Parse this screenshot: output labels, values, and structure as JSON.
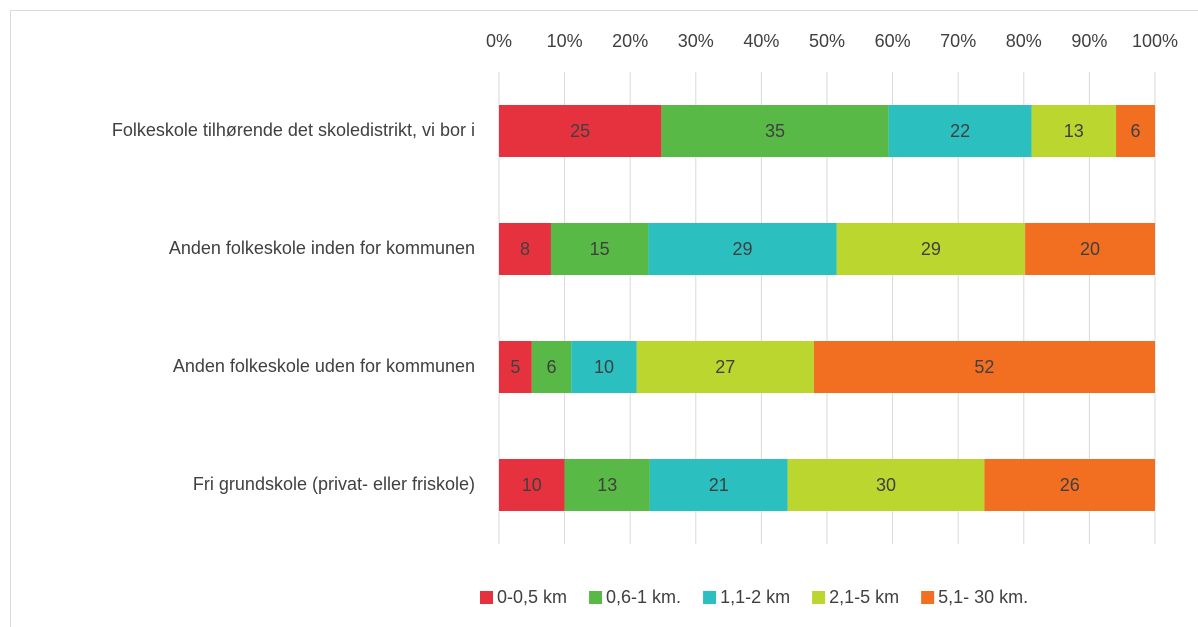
{
  "chart_data": {
    "type": "bar",
    "orientation": "horizontal",
    "stacking": "percent",
    "categories": [
      "Folkeskole tilhørende det skoledistrikt, vi bor i",
      "Anden folkeskole inden for kommunen",
      "Anden folkeskole uden for kommunen",
      "Fri grundskole (privat- eller friskole)"
    ],
    "series": [
      {
        "name": "0-0,5 km",
        "color": "#e5323e",
        "values": [
          25,
          8,
          5,
          10
        ]
      },
      {
        "name": "0,6-1 km.",
        "color": "#58b947",
        "values": [
          35,
          15,
          6,
          13
        ]
      },
      {
        "name": "1,1-2 km",
        "color": "#2bbfbf",
        "values": [
          22,
          29,
          10,
          21
        ]
      },
      {
        "name": "2,1-5 km",
        "color": "#bcd630",
        "values": [
          13,
          29,
          27,
          30
        ]
      },
      {
        "name": "5,1- 30 km.",
        "color": "#f26f22",
        "values": [
          6,
          20,
          52,
          26
        ]
      }
    ],
    "xlim": [
      0,
      100
    ],
    "xticks": [
      {
        "value": 0,
        "label": "0%"
      },
      {
        "value": 10,
        "label": "10%"
      },
      {
        "value": 20,
        "label": "20%"
      },
      {
        "value": 30,
        "label": "30%"
      },
      {
        "value": 40,
        "label": "40%"
      },
      {
        "value": 50,
        "label": "50%"
      },
      {
        "value": 60,
        "label": "60%"
      },
      {
        "value": 70,
        "label": "70%"
      },
      {
        "value": 80,
        "label": "80%"
      },
      {
        "value": 90,
        "label": "90%"
      },
      {
        "value": 100,
        "label": "100%"
      }
    ],
    "grid": true,
    "legend": "bottom"
  }
}
